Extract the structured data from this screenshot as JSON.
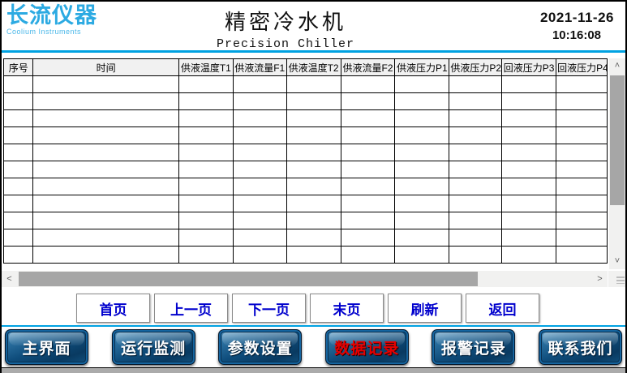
{
  "header": {
    "logo_text": "长流仪器",
    "logo_subtext": "Coolium Instruments",
    "title": "精密冷水机",
    "subtitle": "Precision Chiller",
    "date": "2021-11-26",
    "time": "10:16:08"
  },
  "table": {
    "columns": [
      "序号",
      "时间",
      "供液温度T1",
      "供液流量F1",
      "供液温度T2",
      "供液流量F2",
      "供液压力P1",
      "供液压力P2",
      "回液压力P3",
      "回液压力P4"
    ],
    "visible_rows": 11,
    "rows": []
  },
  "scrollbar_icons": {
    "up": "˄",
    "down": "˅",
    "left": "˂",
    "right": "˃"
  },
  "pagination": [
    "首页",
    "上一页",
    "下一页",
    "末页",
    "刷新",
    "返回"
  ],
  "bottom_nav": [
    {
      "label": "主界面",
      "active": false
    },
    {
      "label": "运行监测",
      "active": false
    },
    {
      "label": "参数设置",
      "active": false
    },
    {
      "label": "数据记录",
      "active": true
    },
    {
      "label": "报警记录",
      "active": false
    },
    {
      "label": "联系我们",
      "active": false
    }
  ],
  "colors": {
    "accent_line": "#00a2e2",
    "logo_blue": "#2caae2",
    "pagination_text": "#0000cd",
    "active_text_red": "#e60000",
    "button_navy_dark": "#093a61",
    "button_navy_light": "#5b9cc6",
    "scrollbar_thumb": "#a6a6a6"
  }
}
